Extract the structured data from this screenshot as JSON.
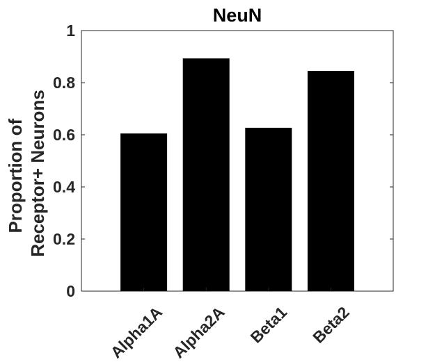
{
  "chart_data": {
    "type": "bar",
    "title": "NeuN",
    "ylabel_lines": [
      "Proportion of",
      "Receptor+ Neurons"
    ],
    "xlabel": "",
    "categories": [
      "Alpha1A",
      "Alpha2A",
      "Beta1",
      "Beta2"
    ],
    "values": [
      0.605,
      0.893,
      0.627,
      0.845
    ],
    "ylim": [
      0,
      1
    ],
    "yticks": [
      "0",
      "0.2",
      "0.4",
      "0.6",
      "0.8",
      "1"
    ],
    "ytick_values": [
      0,
      0.2,
      0.4,
      0.6,
      0.8,
      1
    ],
    "bar_color": "#000000",
    "grid": false,
    "box": true
  }
}
